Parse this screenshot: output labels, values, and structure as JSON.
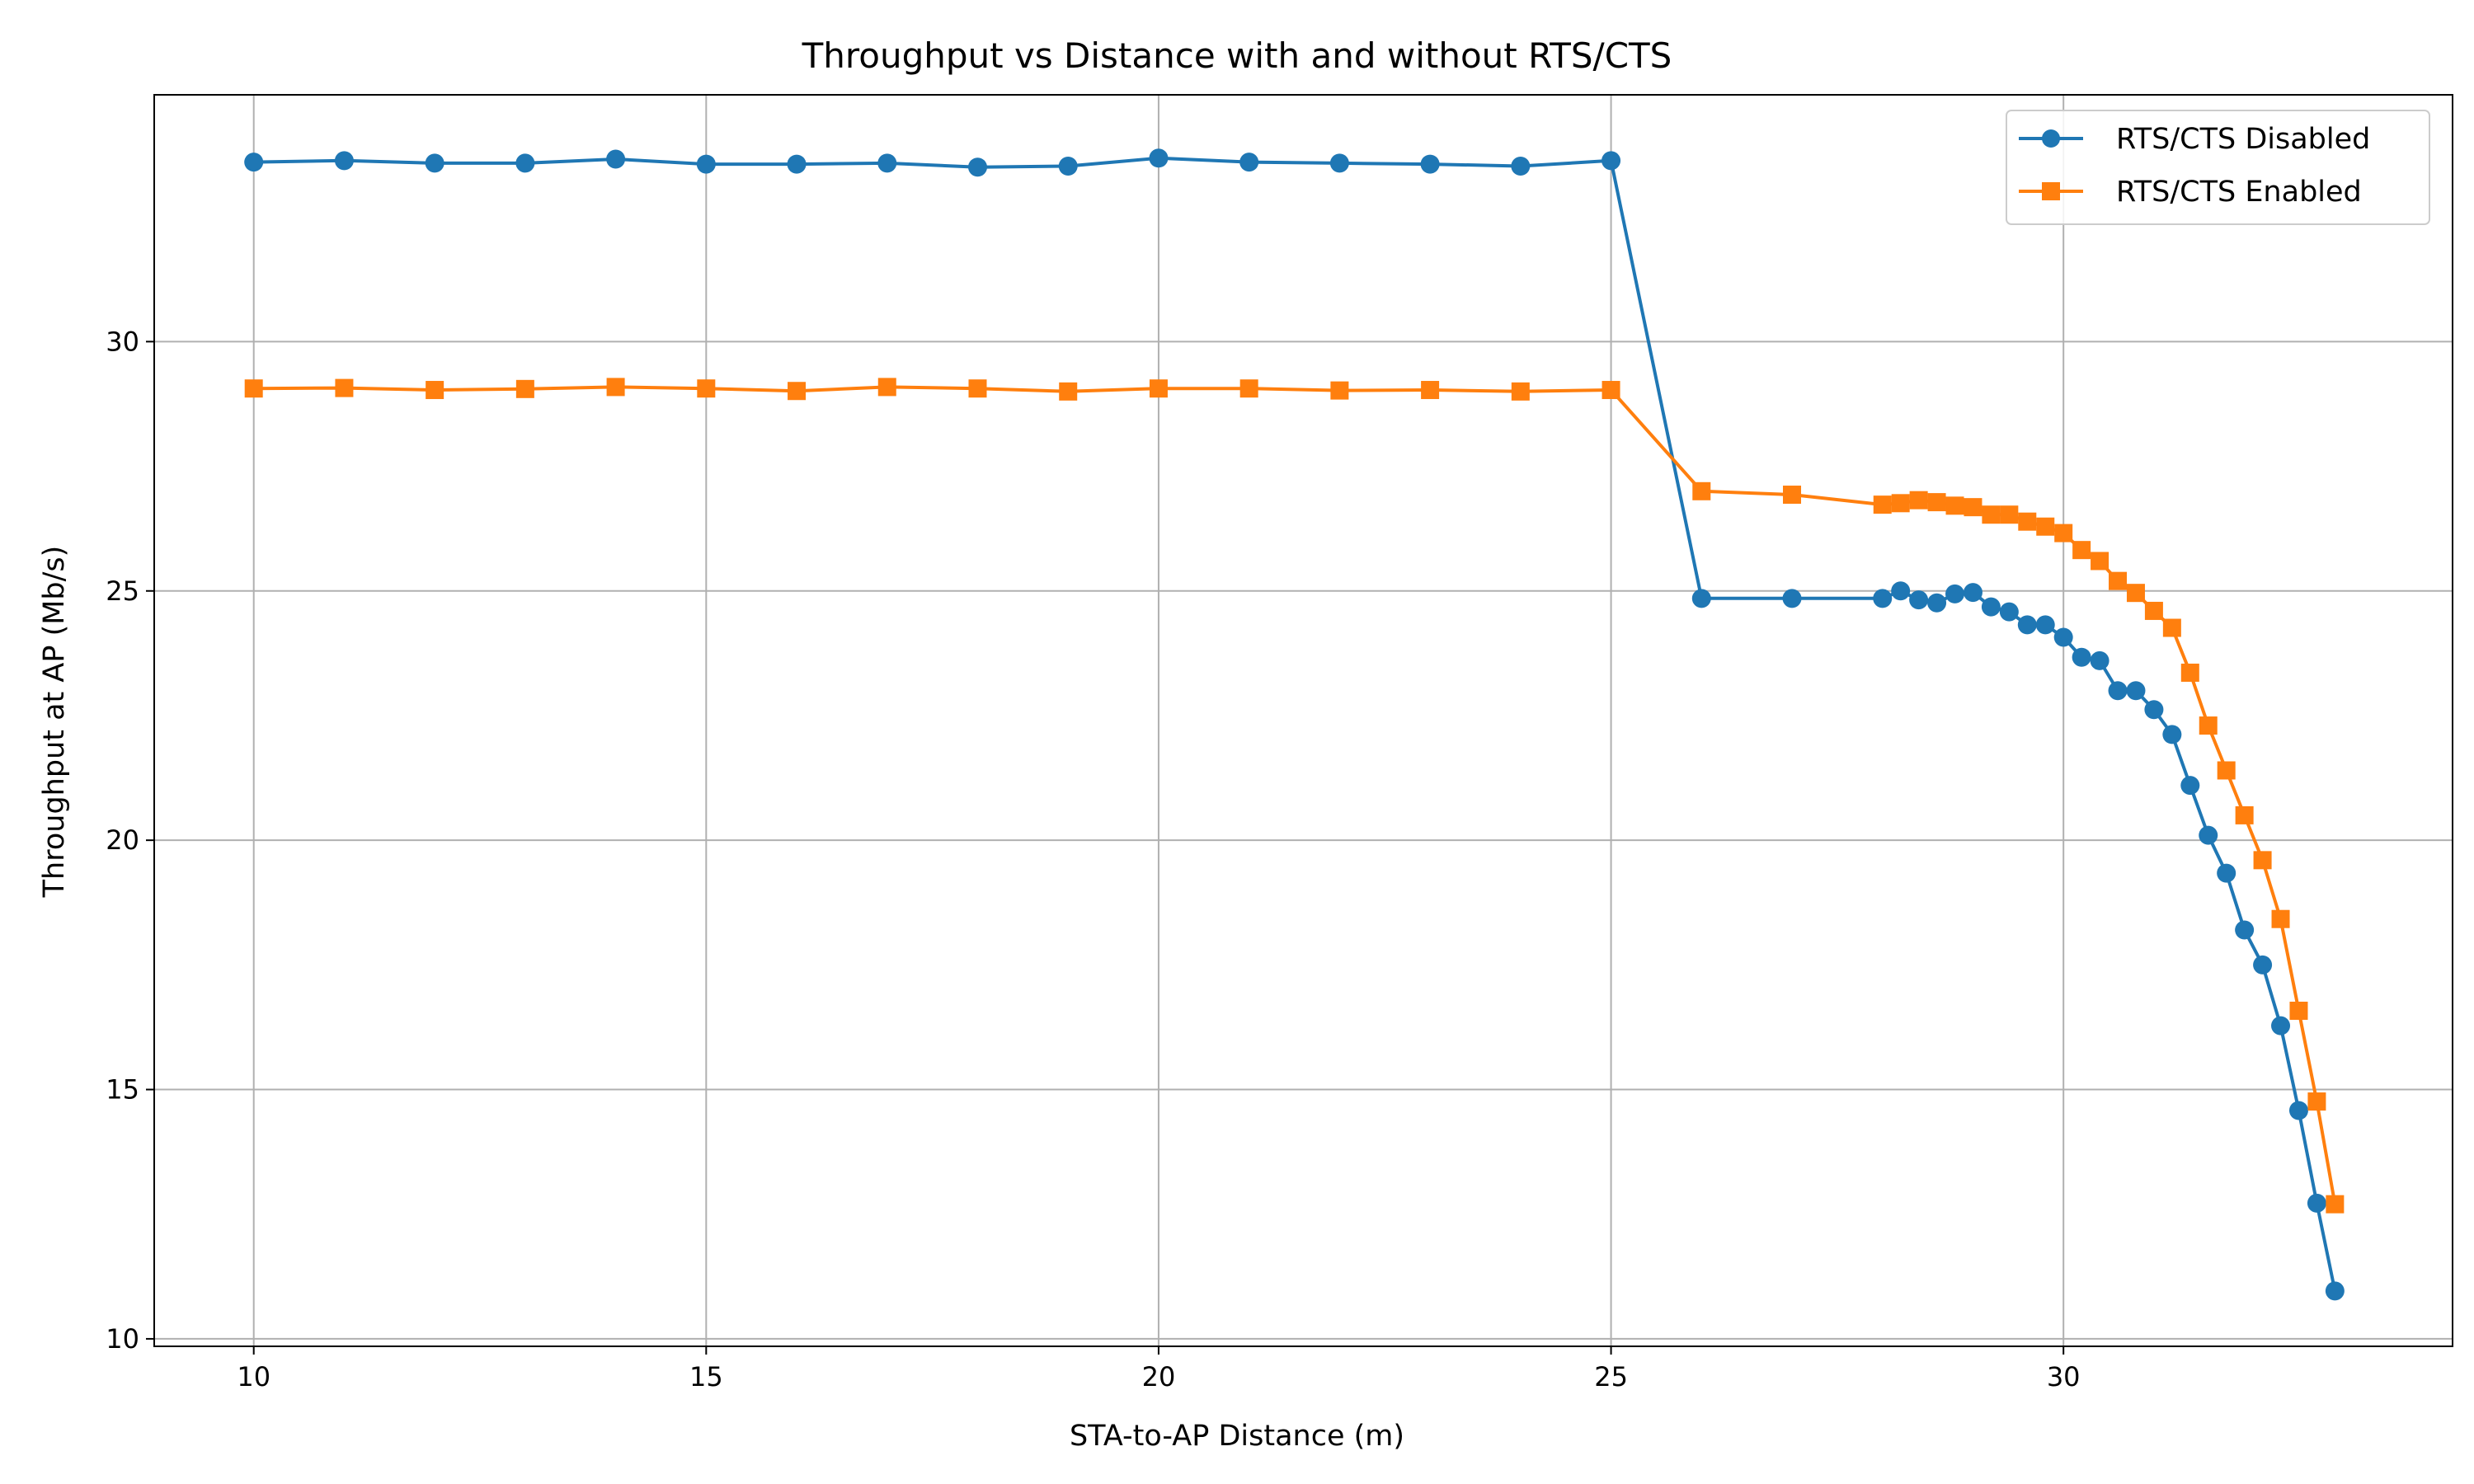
{
  "chart_data": {
    "type": "line",
    "title": "Throughput vs Distance with and without RTS/CTS",
    "xlabel": "STA-to-AP Distance (m)",
    "ylabel": "Throughput at AP (Mb/s)",
    "xlim": [
      8.9,
      34.3
    ],
    "ylim": [
      9.85,
      34.95
    ],
    "xticks": [
      10,
      15,
      20,
      25,
      30
    ],
    "yticks": [
      10,
      15,
      20,
      25,
      30
    ],
    "grid": true,
    "legend_position": "top-right",
    "series": [
      {
        "name": "RTS/CTS Disabled",
        "color": "#1f77b4",
        "marker": "circle",
        "x": [
          10,
          11,
          12,
          13,
          14,
          15,
          16,
          17,
          18,
          19,
          20,
          21,
          22,
          23,
          24,
          25,
          26,
          27,
          28,
          28.2,
          28.4,
          28.6,
          28.8,
          29,
          29.2,
          29.4,
          29.6,
          29.8,
          30,
          30.2,
          30.4,
          30.6,
          30.8,
          31,
          31.2,
          31.4,
          31.6,
          31.8,
          32,
          32.2,
          32.4,
          32.6,
          32.8,
          33
        ],
        "y": [
          33.6,
          33.63,
          33.58,
          33.58,
          33.66,
          33.56,
          33.56,
          33.58,
          33.5,
          33.52,
          33.68,
          33.6,
          33.58,
          33.56,
          33.52,
          33.63,
          24.85,
          24.85,
          24.85,
          25.0,
          24.82,
          24.76,
          24.94,
          24.97,
          24.68,
          24.58,
          24.32,
          24.32,
          24.07,
          23.67,
          23.6,
          23.0,
          23.0,
          22.62,
          22.12,
          21.1,
          20.1,
          19.34,
          18.2,
          17.5,
          16.28,
          14.58,
          12.72,
          10.96
        ]
      },
      {
        "name": "RTS/CTS Enabled",
        "color": "#ff7f0e",
        "marker": "square",
        "x": [
          10,
          11,
          12,
          13,
          14,
          15,
          16,
          17,
          18,
          19,
          20,
          21,
          22,
          23,
          24,
          25,
          26,
          27,
          28,
          28.2,
          28.4,
          28.6,
          28.8,
          29,
          29.2,
          29.4,
          29.6,
          29.8,
          30,
          30.2,
          30.4,
          30.6,
          30.8,
          31,
          31.2,
          31.4,
          31.6,
          31.8,
          32,
          32.2,
          32.4,
          32.6,
          32.8,
          33
        ],
        "y": [
          29.06,
          29.07,
          29.03,
          29.05,
          29.09,
          29.06,
          29.01,
          29.09,
          29.06,
          29.0,
          29.06,
          29.06,
          29.02,
          29.03,
          29.0,
          29.03,
          27.0,
          26.93,
          26.73,
          26.76,
          26.82,
          26.78,
          26.71,
          26.68,
          26.53,
          26.53,
          26.39,
          26.29,
          26.16,
          25.82,
          25.6,
          25.2,
          24.96,
          24.6,
          24.26,
          23.36,
          22.3,
          21.4,
          20.5,
          19.6,
          18.42,
          16.58,
          14.76,
          12.7
        ]
      }
    ]
  }
}
